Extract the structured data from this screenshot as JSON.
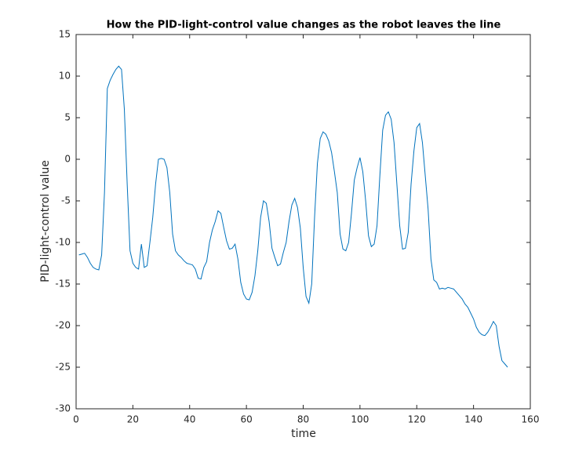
{
  "chart_data": {
    "type": "line",
    "title": "How the PID-light-control value changes as the robot leaves the line",
    "x_label": "time",
    "y_label": "PID-light-control value",
    "x": [
      1,
      2,
      3,
      4,
      5,
      6,
      7,
      8,
      9,
      10,
      11,
      12,
      13,
      14,
      15,
      16,
      17,
      18,
      19,
      20,
      21,
      22,
      23,
      24,
      25,
      26,
      27,
      28,
      29,
      30,
      31,
      32,
      33,
      34,
      35,
      36,
      37,
      38,
      39,
      40,
      41,
      42,
      43,
      44,
      45,
      46,
      47,
      48,
      49,
      50,
      51,
      52,
      53,
      54,
      55,
      56,
      57,
      58,
      59,
      60,
      61,
      62,
      63,
      64,
      65,
      66,
      67,
      68,
      69,
      70,
      71,
      72,
      73,
      74,
      75,
      76,
      77,
      78,
      79,
      80,
      81,
      82,
      83,
      84,
      85,
      86,
      87,
      88,
      89,
      90,
      91,
      92,
      93,
      94,
      95,
      96,
      97,
      98,
      99,
      100,
      101,
      102,
      103,
      104,
      105,
      106,
      107,
      108,
      109,
      110,
      111,
      112,
      113,
      114,
      115,
      116,
      117,
      118,
      119,
      120,
      121,
      122,
      123,
      124,
      125,
      126,
      127,
      128,
      129,
      130,
      131,
      132,
      133,
      134,
      135,
      136,
      137,
      138,
      139,
      140,
      141,
      142,
      143,
      144,
      145,
      146,
      147,
      148,
      149,
      150,
      151,
      152
    ],
    "series": [
      {
        "name": "PID-light-control value",
        "color": "#0072bd",
        "values": [
          -11.5,
          -11.4,
          -11.3,
          -11.8,
          -12.5,
          -13.0,
          -13.2,
          -13.3,
          -11.5,
          -4,
          8.5,
          9.5,
          10.2,
          10.8,
          11.2,
          10.8,
          6,
          -3,
          -11,
          -12.5,
          -13,
          -13.2,
          -10.2,
          -13,
          -12.8,
          -10,
          -7,
          -3,
          0,
          0.1,
          0,
          -1,
          -4,
          -9,
          -11,
          -11.5,
          -11.8,
          -12.2,
          -12.5,
          -12.6,
          -12.7,
          -13.2,
          -14.3,
          -14.4,
          -13,
          -12.3,
          -10,
          -8.5,
          -7.5,
          -6.2,
          -6.5,
          -8.2,
          -9.8,
          -10.8,
          -10.7,
          -10.2,
          -12,
          -14.8,
          -16.2,
          -16.8,
          -16.9,
          -16,
          -14,
          -11,
          -7,
          -5,
          -5.3,
          -7.5,
          -10.7,
          -11.8,
          -12.8,
          -12.6,
          -11.2,
          -10,
          -7.5,
          -5.5,
          -4.7,
          -5.8,
          -8.3,
          -13,
          -16.5,
          -17.3,
          -15,
          -7,
          -0.5,
          2.5,
          3.3,
          3,
          2.2,
          0.8,
          -1.5,
          -4,
          -9,
          -10.8,
          -11,
          -10,
          -6.5,
          -2.5,
          -1,
          0.2,
          -1.5,
          -5,
          -9.2,
          -10.5,
          -10.2,
          -8,
          -2,
          3.5,
          5.3,
          5.7,
          4.8,
          2,
          -3,
          -8,
          -10.8,
          -10.7,
          -8.8,
          -3,
          1,
          3.8,
          4.3,
          2,
          -2,
          -6,
          -12,
          -14.5,
          -14.8,
          -15.6,
          -15.5,
          -15.6,
          -15.4,
          -15.5,
          -15.6,
          -16,
          -16.4,
          -16.8,
          -17.4,
          -17.8,
          -18.5,
          -19.2,
          -20.2,
          -20.8,
          -21.1,
          -21.2,
          -20.8,
          -20.2,
          -19.5,
          -20,
          -22.5,
          -24.2,
          -24.6,
          -25
        ]
      }
    ],
    "xlim": [
      0,
      160
    ],
    "xticks": [
      0,
      20,
      40,
      60,
      80,
      100,
      120,
      140,
      160
    ],
    "ylim": [
      -30,
      15
    ],
    "yticks": [
      -30,
      -25,
      -20,
      -15,
      -10,
      -5,
      0,
      5,
      10,
      15
    ],
    "grid": false
  }
}
